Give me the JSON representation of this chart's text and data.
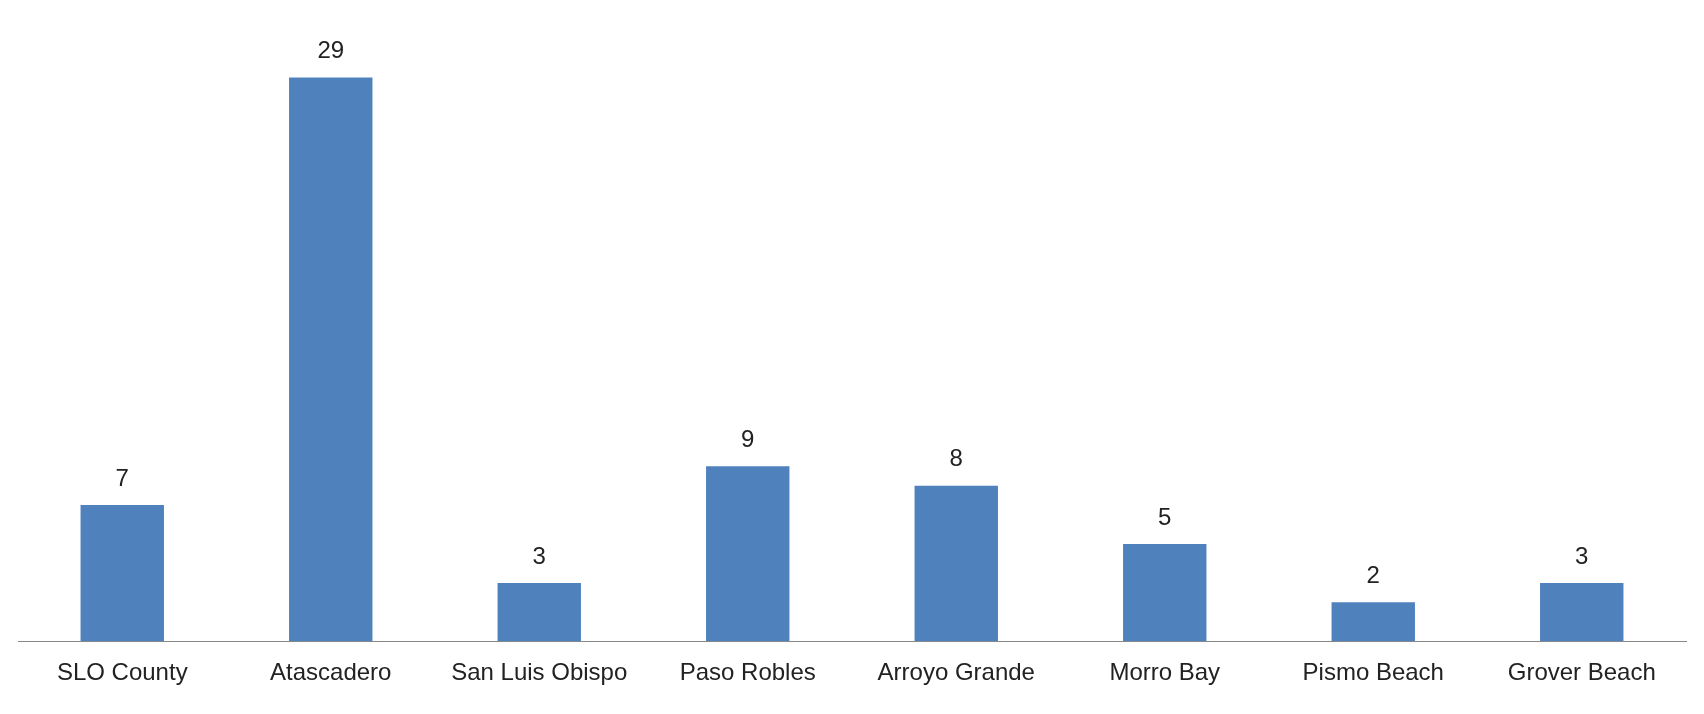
{
  "chart_data": {
    "type": "bar",
    "categories": [
      "SLO County",
      "Atascadero",
      "San Luis Obispo",
      "Paso Robles",
      "Arroyo Grande",
      "Morro Bay",
      "Pismo Beach",
      "Grover Beach"
    ],
    "values": [
      7,
      29,
      3,
      9,
      8,
      5,
      2,
      3
    ],
    "color": "#4f81bd",
    "data_labels": true,
    "grid": false,
    "legend": false
  }
}
